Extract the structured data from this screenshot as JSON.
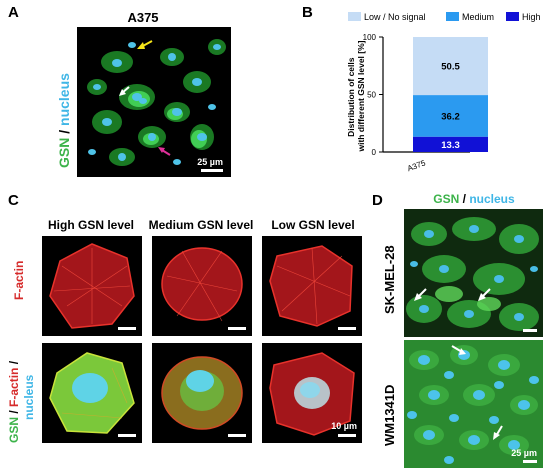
{
  "panel_a": {
    "letter": "A",
    "title": "A375",
    "label_gsn": "GSN",
    "label_sep": " / ",
    "label_nucleus": "nucleus",
    "scale": "25 µm"
  },
  "panel_b": {
    "letter": "B"
  },
  "panel_c": {
    "letter": "C",
    "col_high": "High GSN level",
    "col_medium": "Medium GSN level",
    "col_low": "Low GSN level",
    "row1_label": "F-actin",
    "row2_gsn": "GSN",
    "row2_sep1": " / ",
    "row2_factin": "F-actin",
    "row2_sep2": " /",
    "row2_nucleus": "nucleus",
    "scale": "10 µm"
  },
  "panel_d": {
    "letter": "D",
    "title_gsn": "GSN",
    "title_sep": " / ",
    "title_nucleus": "nucleus",
    "line1": "SK-MEL-28",
    "line2": "WM1341D",
    "scale": "25 µm"
  },
  "colors": {
    "gsn_green": "#3cb34a",
    "nucleus_cyan": "#3fb6e6",
    "factin_red": "#d62a2a",
    "low": "#c5dcf5",
    "medium": "#2b9af0",
    "high": "#1111d6"
  },
  "chart_data": {
    "type": "bar",
    "stacked": true,
    "categories": [
      "A375"
    ],
    "series": [
      {
        "name": "High",
        "values": [
          13.3
        ]
      },
      {
        "name": "Medium",
        "values": [
          36.2
        ]
      },
      {
        "name": "Low / No signal",
        "values": [
          50.5
        ]
      }
    ],
    "ylabel": "Distribution of cells with different GSN level  [%]",
    "ylim": [
      0,
      100
    ],
    "yticks": [
      "0",
      "50",
      "100"
    ],
    "legend_position": "top",
    "grid": false
  }
}
